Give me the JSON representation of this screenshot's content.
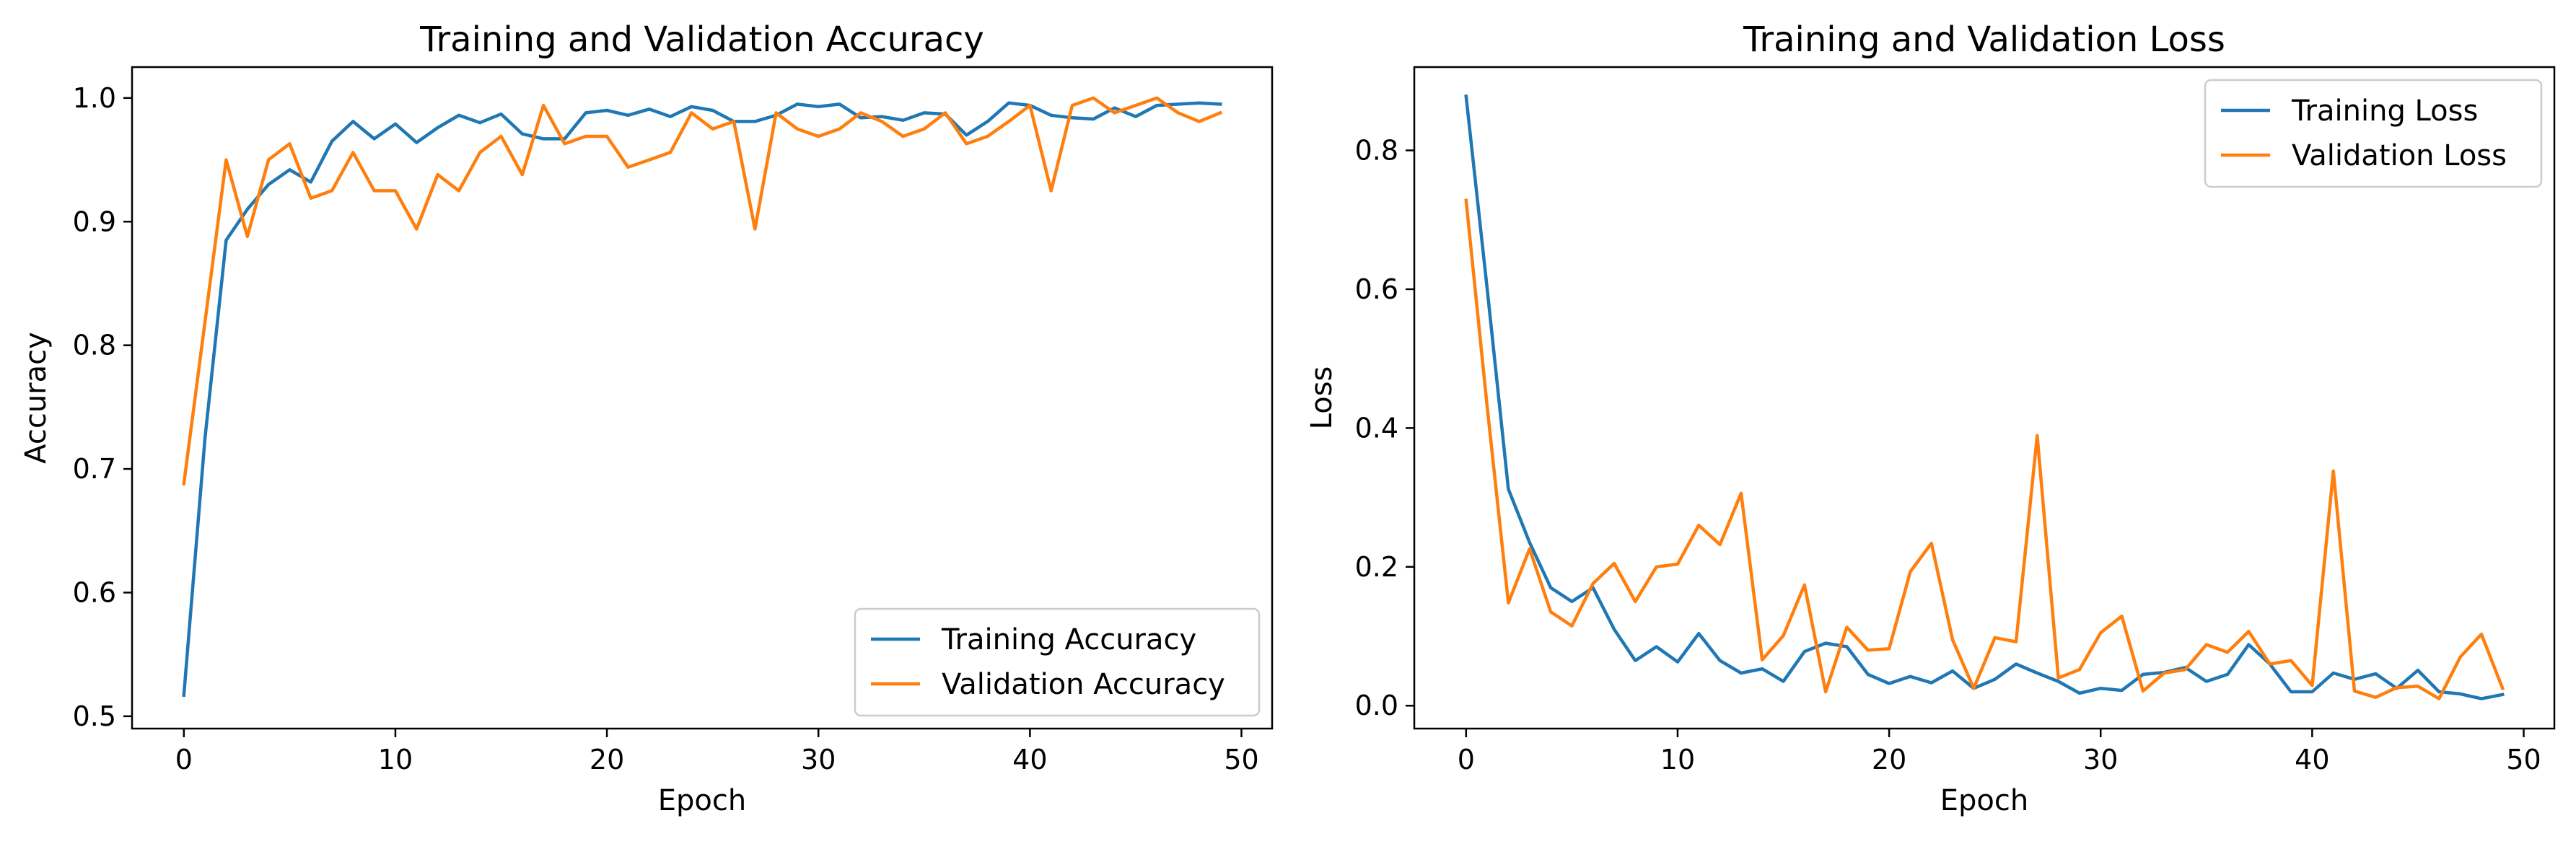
{
  "chart_data": [
    {
      "type": "line",
      "title": "Training and Validation Accuracy",
      "xlabel": "Epoch",
      "ylabel": "Accuracy",
      "xlim": [
        -2.45,
        51.45
      ],
      "ylim": [
        0.49,
        1.025
      ],
      "xticks": [
        0,
        10,
        20,
        30,
        40,
        50
      ],
      "yticks": [
        0.5,
        0.6,
        0.7,
        0.8,
        0.9,
        1.0
      ],
      "ytick_labels": [
        "0.5",
        "0.6",
        "0.7",
        "0.8",
        "0.9",
        "1.0"
      ],
      "grid": false,
      "legend_position": "lower-right",
      "x": [
        0,
        1,
        2,
        3,
        4,
        5,
        6,
        7,
        8,
        9,
        10,
        11,
        12,
        13,
        14,
        15,
        16,
        17,
        18,
        19,
        20,
        21,
        22,
        23,
        24,
        25,
        26,
        27,
        28,
        29,
        30,
        31,
        32,
        33,
        34,
        35,
        36,
        37,
        38,
        39,
        40,
        41,
        42,
        43,
        44,
        45,
        46,
        47,
        48,
        49
      ],
      "series": [
        {
          "name": "Training Accuracy",
          "color": "#1f77b4",
          "values": [
            0.517,
            0.725,
            0.885,
            0.91,
            0.93,
            0.942,
            0.932,
            0.965,
            0.981,
            0.967,
            0.979,
            0.964,
            0.976,
            0.986,
            0.98,
            0.987,
            0.971,
            0.967,
            0.967,
            0.988,
            0.99,
            0.986,
            0.991,
            0.985,
            0.993,
            0.99,
            0.981,
            0.981,
            0.986,
            0.995,
            0.993,
            0.995,
            0.984,
            0.985,
            0.982,
            0.988,
            0.987,
            0.97,
            0.981,
            0.996,
            0.994,
            0.986,
            0.984,
            0.983,
            0.992,
            0.985,
            0.994,
            0.995,
            0.996,
            0.995
          ]
        },
        {
          "name": "Validation Accuracy",
          "color": "#ff7f0e",
          "values": [
            0.688,
            0.819,
            0.95,
            0.888,
            0.95,
            0.963,
            0.919,
            0.925,
            0.956,
            0.925,
            0.925,
            0.894,
            0.938,
            0.925,
            0.956,
            0.969,
            0.938,
            0.994,
            0.963,
            0.969,
            0.969,
            0.944,
            0.95,
            0.956,
            0.988,
            0.975,
            0.981,
            0.894,
            0.988,
            0.975,
            0.969,
            0.975,
            0.988,
            0.981,
            0.969,
            0.975,
            0.988,
            0.963,
            0.969,
            0.981,
            0.994,
            0.925,
            0.994,
            1.0,
            0.988,
            0.994,
            1.0,
            0.988,
            0.981,
            0.988
          ]
        }
      ]
    },
    {
      "type": "line",
      "title": "Training and Validation Loss",
      "xlabel": "Epoch",
      "ylabel": "Loss",
      "xlim": [
        -2.45,
        51.45
      ],
      "ylim": [
        -0.033,
        0.92
      ],
      "xticks": [
        0,
        10,
        20,
        30,
        40,
        50
      ],
      "yticks": [
        0.0,
        0.2,
        0.4,
        0.6,
        0.8
      ],
      "ytick_labels": [
        "0.0",
        "0.2",
        "0.4",
        "0.6",
        "0.8"
      ],
      "grid": false,
      "legend_position": "upper-right",
      "x": [
        0,
        1,
        2,
        3,
        4,
        5,
        6,
        7,
        8,
        9,
        10,
        11,
        12,
        13,
        14,
        15,
        16,
        17,
        18,
        19,
        20,
        21,
        22,
        23,
        24,
        25,
        26,
        27,
        28,
        29,
        30,
        31,
        32,
        33,
        34,
        35,
        36,
        37,
        38,
        39,
        40,
        41,
        42,
        43,
        44,
        45,
        46,
        47,
        48,
        49
      ],
      "series": [
        {
          "name": "Training Loss",
          "color": "#1f77b4",
          "values": [
            0.878,
            0.6,
            0.312,
            0.235,
            0.17,
            0.15,
            0.17,
            0.11,
            0.065,
            0.085,
            0.063,
            0.104,
            0.065,
            0.047,
            0.053,
            0.035,
            0.078,
            0.09,
            0.085,
            0.045,
            0.032,
            0.042,
            0.033,
            0.05,
            0.025,
            0.038,
            0.06,
            0.047,
            0.035,
            0.018,
            0.025,
            0.022,
            0.045,
            0.048,
            0.055,
            0.035,
            0.045,
            0.088,
            0.06,
            0.02,
            0.02,
            0.047,
            0.038,
            0.046,
            0.025,
            0.051,
            0.02,
            0.017,
            0.01,
            0.016
          ]
        },
        {
          "name": "Validation Loss",
          "color": "#ff7f0e",
          "values": [
            0.728,
            0.43,
            0.148,
            0.226,
            0.135,
            0.115,
            0.176,
            0.205,
            0.15,
            0.2,
            0.204,
            0.26,
            0.232,
            0.306,
            0.066,
            0.101,
            0.174,
            0.02,
            0.113,
            0.08,
            0.082,
            0.193,
            0.234,
            0.095,
            0.025,
            0.098,
            0.092,
            0.389,
            0.04,
            0.052,
            0.105,
            0.129,
            0.021,
            0.047,
            0.052,
            0.088,
            0.077,
            0.107,
            0.06,
            0.065,
            0.029,
            0.338,
            0.021,
            0.012,
            0.026,
            0.028,
            0.01,
            0.07,
            0.103,
            0.025
          ]
        }
      ]
    }
  ]
}
